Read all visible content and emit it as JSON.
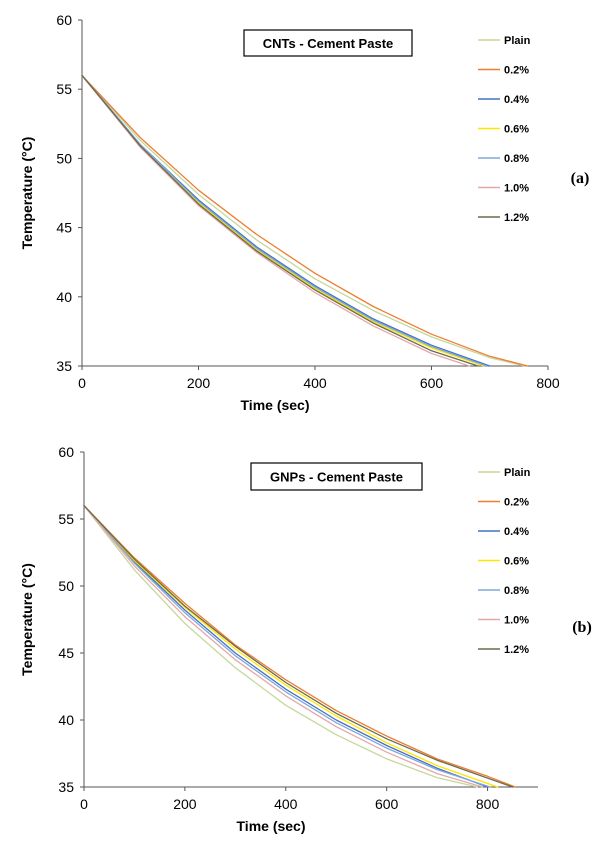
{
  "chart_data": [
    {
      "type": "line",
      "panel_label": "(a)",
      "title": "CNTs - Cement Paste",
      "xlabel": "Time (sec)",
      "ylabel": "Temperature (°C)",
      "xlim": [
        0,
        800
      ],
      "ylim": [
        35,
        60
      ],
      "xticks": [
        "0",
        "200",
        "400",
        "600",
        "800"
      ],
      "yticks": [
        "35",
        "40",
        "45",
        "50",
        "55",
        "60"
      ],
      "grid": false,
      "legend_position": "top-right",
      "series": [
        {
          "name": "Plain",
          "color": "#c5d89a",
          "x": [
            0,
            100,
            200,
            300,
            400,
            500,
            600,
            700,
            760
          ],
          "y": [
            56,
            51.3,
            47.4,
            44.1,
            41.3,
            39.0,
            37.1,
            35.6,
            35.0
          ]
        },
        {
          "name": "0.2%",
          "color": "#ed7d31",
          "x": [
            0,
            100,
            200,
            300,
            400,
            500,
            600,
            700,
            765
          ],
          "y": [
            56,
            51.5,
            47.7,
            44.5,
            41.7,
            39.3,
            37.3,
            35.7,
            35.0
          ]
        },
        {
          "name": "0.4%",
          "color": "#4472c4",
          "x": [
            0,
            100,
            200,
            300,
            400,
            500,
            600,
            700
          ],
          "y": [
            56,
            51.0,
            47.0,
            43.6,
            40.8,
            38.4,
            36.5,
            35.0
          ]
        },
        {
          "name": "0.6%",
          "color": "#ffe600",
          "x": [
            0,
            100,
            200,
            300,
            400,
            500,
            600,
            690
          ],
          "y": [
            56,
            50.9,
            46.8,
            43.4,
            40.6,
            38.2,
            36.3,
            35.0
          ]
        },
        {
          "name": "0.8%",
          "color": "#7fa9db",
          "x": [
            0,
            100,
            200,
            300,
            400,
            500,
            600,
            695
          ],
          "y": [
            56,
            51.0,
            46.9,
            43.5,
            40.7,
            38.3,
            36.4,
            35.0
          ]
        },
        {
          "name": "1.0%",
          "color": "#e6a7a7",
          "x": [
            0,
            100,
            200,
            300,
            400,
            500,
            600,
            665
          ],
          "y": [
            56,
            50.8,
            46.6,
            43.2,
            40.3,
            37.9,
            35.9,
            35.0
          ]
        },
        {
          "name": "1.2%",
          "color": "#6b6b4b",
          "x": [
            0,
            100,
            200,
            300,
            400,
            500,
            600,
            680
          ],
          "y": [
            56,
            50.9,
            46.7,
            43.3,
            40.5,
            38.1,
            36.1,
            35.0
          ]
        }
      ]
    },
    {
      "type": "line",
      "panel_label": "(b)",
      "title": "GNPs - Cement Paste",
      "xlabel": "Time (sec)",
      "ylabel": "Temperature (°C)",
      "xlim": [
        0,
        900
      ],
      "ylim": [
        35,
        60
      ],
      "xticks": [
        "0",
        "200",
        "400",
        "600",
        "800"
      ],
      "yticks": [
        "35",
        "40",
        "45",
        "50",
        "55",
        "60"
      ],
      "grid": false,
      "legend_position": "top-right",
      "series": [
        {
          "name": "Plain",
          "color": "#c5d89a",
          "x": [
            0,
            100,
            200,
            300,
            400,
            500,
            600,
            700,
            780
          ],
          "y": [
            56,
            51.2,
            47.2,
            43.9,
            41.1,
            38.9,
            37.1,
            35.7,
            35.0
          ]
        },
        {
          "name": "0.2%",
          "color": "#ed7d31",
          "x": [
            0,
            100,
            200,
            300,
            400,
            500,
            600,
            700,
            800,
            855
          ],
          "y": [
            56,
            52.1,
            48.7,
            45.6,
            43.0,
            40.7,
            38.8,
            37.1,
            35.8,
            35.0
          ]
        },
        {
          "name": "0.4%",
          "color": "#4472c4",
          "x": [
            0,
            100,
            200,
            300,
            400,
            500,
            600,
            700,
            800
          ],
          "y": [
            56,
            51.8,
            48.2,
            45.0,
            42.3,
            40.0,
            38.1,
            36.4,
            35.0
          ]
        },
        {
          "name": "0.6%",
          "color": "#ffe600",
          "x": [
            0,
            100,
            200,
            300,
            400,
            500,
            600,
            700,
            820
          ],
          "y": [
            56,
            51.9,
            48.4,
            45.3,
            42.6,
            40.3,
            38.3,
            36.6,
            35.0
          ]
        },
        {
          "name": "0.8%",
          "color": "#7fa9db",
          "x": [
            0,
            100,
            200,
            300,
            400,
            500,
            600,
            700,
            805
          ],
          "y": [
            56,
            51.7,
            48.0,
            44.8,
            42.1,
            39.8,
            37.9,
            36.3,
            35.0
          ]
        },
        {
          "name": "1.0%",
          "color": "#e6a7a7",
          "x": [
            0,
            100,
            200,
            300,
            400,
            500,
            600,
            700,
            790
          ],
          "y": [
            56,
            51.5,
            47.7,
            44.5,
            41.8,
            39.5,
            37.6,
            36.0,
            35.0
          ]
        },
        {
          "name": "1.2%",
          "color": "#6b6b4b",
          "x": [
            0,
            100,
            200,
            300,
            400,
            500,
            600,
            700,
            850
          ],
          "y": [
            56,
            52.0,
            48.5,
            45.5,
            42.8,
            40.5,
            38.6,
            37.0,
            35.0
          ]
        }
      ]
    }
  ]
}
